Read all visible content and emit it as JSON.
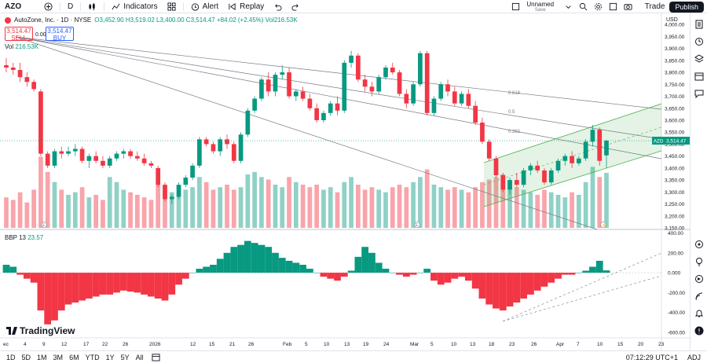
{
  "toolbar": {
    "symbol": "AZO",
    "interval": "D",
    "indicators_label": "Indicators",
    "alert_label": "Alert",
    "replay_label": "Replay",
    "layout_name": "Unnamed",
    "layout_status": "Save",
    "trade_label": "Trade",
    "publish_label": "Publish"
  },
  "legend": {
    "title": "AutoZone, Inc. · 1D · NYSE",
    "ohlc": "O3,452.90  H3,519.02  L3,400.00  C3,514.47  +84.02 (+2.45%)  Vol216.53K",
    "sell_price": "3,514.47",
    "sell_label": "SELL",
    "spread": "0.00",
    "buy_price": "3,514.47",
    "buy_label": "BUY",
    "vol_prefix": "Vol",
    "vol_value": "216.53K"
  },
  "indicator": {
    "name": "BBP 13",
    "value": "23.57"
  },
  "price_axis": {
    "currency": "USD",
    "ticks": [
      "4,000.00",
      "3,950.00",
      "3,900.00",
      "3,850.00",
      "3,800.00",
      "3,750.00",
      "3,700.00",
      "3,650.00",
      "3,600.00",
      "3,550.00",
      "3,500.00",
      "3,450.00",
      "3,400.00",
      "3,350.00",
      "3,300.00",
      "3,250.00",
      "3,200.00",
      "3,150.00"
    ],
    "current_label": "AZO",
    "current_price": "3,514.47"
  },
  "bbp_axis": {
    "ticks": [
      "400.00",
      "200.00",
      "0.000",
      "-200.00",
      "-400.00",
      "-600.00"
    ]
  },
  "fib_labels": [
    "0.618",
    "0.5",
    "0.382"
  ],
  "time_axis": [
    "ec",
    "4",
    "9",
    "12",
    "17",
    "22",
    "26",
    "2026",
    "12",
    "15",
    "21",
    "26",
    "Feb",
    "5",
    "10",
    "13",
    "19",
    "24",
    "Mar",
    "5",
    "10",
    "13",
    "18",
    "23",
    "26",
    "Apr",
    "7",
    "10",
    "15",
    "20",
    "23"
  ],
  "bottombar": {
    "ranges": [
      "1D",
      "5D",
      "1M",
      "3M",
      "6M",
      "YTD",
      "1Y",
      "5Y",
      "All"
    ],
    "clock": "07:12:29 UTC+1",
    "adj": "ADJ"
  },
  "logo_text": "TradingView",
  "colors": {
    "up": "#089981",
    "down": "#f23645",
    "channel": "#4caf50"
  },
  "chart_data": {
    "type": "candlestick",
    "title": "AutoZone, Inc. 1D NYSE",
    "ylim": [
      3150,
      4040
    ],
    "candles": [
      [
        3830,
        3860,
        3800,
        3820
      ],
      [
        3820,
        3840,
        3790,
        3810
      ],
      [
        3810,
        3840,
        3760,
        3780
      ],
      [
        3780,
        3800,
        3740,
        3760
      ],
      [
        3760,
        3770,
        3720,
        3730
      ],
      [
        3720,
        3730,
        3450,
        3460
      ],
      [
        3460,
        3470,
        3400,
        3410
      ],
      [
        3410,
        3480,
        3400,
        3470
      ],
      [
        3470,
        3490,
        3440,
        3460
      ],
      [
        3460,
        3490,
        3450,
        3470
      ],
      [
        3470,
        3500,
        3450,
        3480
      ],
      [
        3480,
        3490,
        3420,
        3430
      ],
      [
        3430,
        3460,
        3400,
        3450
      ],
      [
        3450,
        3470,
        3420,
        3430
      ],
      [
        3430,
        3450,
        3400,
        3410
      ],
      [
        3410,
        3450,
        3400,
        3440
      ],
      [
        3440,
        3470,
        3430,
        3460
      ],
      [
        3460,
        3480,
        3440,
        3470
      ],
      [
        3470,
        3480,
        3440,
        3450
      ],
      [
        3450,
        3470,
        3430,
        3440
      ],
      [
        3440,
        3460,
        3410,
        3420
      ],
      [
        3420,
        3430,
        3400,
        3410
      ],
      [
        3400,
        3410,
        3320,
        3330
      ],
      [
        3330,
        3340,
        3260,
        3270
      ],
      [
        3270,
        3290,
        3250,
        3280
      ],
      [
        3280,
        3340,
        3270,
        3330
      ],
      [
        3330,
        3370,
        3320,
        3360
      ],
      [
        3360,
        3420,
        3350,
        3410
      ],
      [
        3410,
        3530,
        3400,
        3520
      ],
      [
        3520,
        3530,
        3490,
        3500
      ],
      [
        3500,
        3510,
        3460,
        3470
      ],
      [
        3470,
        3530,
        3450,
        3520
      ],
      [
        3520,
        3540,
        3480,
        3500
      ],
      [
        3500,
        3510,
        3420,
        3430
      ],
      [
        3430,
        3550,
        3420,
        3540
      ],
      [
        3540,
        3650,
        3530,
        3640
      ],
      [
        3640,
        3700,
        3630,
        3690
      ],
      [
        3690,
        3780,
        3680,
        3770
      ],
      [
        3770,
        3800,
        3700,
        3720
      ],
      [
        3720,
        3800,
        3700,
        3790
      ],
      [
        3790,
        3830,
        3770,
        3800
      ],
      [
        3800,
        3820,
        3690,
        3700
      ],
      [
        3700,
        3730,
        3680,
        3720
      ],
      [
        3720,
        3740,
        3680,
        3690
      ],
      [
        3690,
        3710,
        3640,
        3650
      ],
      [
        3650,
        3670,
        3590,
        3600
      ],
      [
        3600,
        3640,
        3590,
        3630
      ],
      [
        3630,
        3680,
        3620,
        3670
      ],
      [
        3670,
        3700,
        3620,
        3640
      ],
      [
        3640,
        3850,
        3630,
        3840
      ],
      [
        3840,
        3890,
        3820,
        3870
      ],
      [
        3870,
        3880,
        3760,
        3770
      ],
      [
        3770,
        3790,
        3720,
        3740
      ],
      [
        3740,
        3760,
        3700,
        3720
      ],
      [
        3720,
        3790,
        3710,
        3780
      ],
      [
        3780,
        3830,
        3770,
        3820
      ],
      [
        3820,
        3840,
        3790,
        3800
      ],
      [
        3800,
        3810,
        3700,
        3710
      ],
      [
        3710,
        3730,
        3650,
        3670
      ],
      [
        3670,
        3760,
        3660,
        3750
      ],
      [
        3750,
        3890,
        3740,
        3880
      ],
      [
        3880,
        3890,
        3620,
        3630
      ],
      [
        3630,
        3700,
        3620,
        3690
      ],
      [
        3690,
        3760,
        3680,
        3750
      ],
      [
        3750,
        3770,
        3700,
        3720
      ],
      [
        3720,
        3740,
        3660,
        3670
      ],
      [
        3670,
        3720,
        3660,
        3710
      ],
      [
        3710,
        3730,
        3650,
        3660
      ],
      [
        3660,
        3680,
        3580,
        3590
      ],
      [
        3590,
        3610,
        3500,
        3510
      ],
      [
        3510,
        3520,
        3430,
        3440
      ],
      [
        3440,
        3450,
        3360,
        3370
      ],
      [
        3370,
        3380,
        3300,
        3310
      ],
      [
        3310,
        3360,
        3290,
        3350
      ],
      [
        3350,
        3380,
        3320,
        3330
      ],
      [
        3330,
        3400,
        3320,
        3390
      ],
      [
        3390,
        3420,
        3370,
        3410
      ],
      [
        3410,
        3430,
        3380,
        3390
      ],
      [
        3390,
        3400,
        3330,
        3340
      ],
      [
        3340,
        3400,
        3330,
        3390
      ],
      [
        3390,
        3440,
        3380,
        3430
      ],
      [
        3430,
        3460,
        3410,
        3450
      ],
      [
        3450,
        3470,
        3400,
        3420
      ],
      [
        3420,
        3450,
        3410,
        3440
      ],
      [
        3440,
        3520,
        3430,
        3510
      ],
      [
        3510,
        3580,
        3490,
        3560
      ],
      [
        3560,
        3570,
        3410,
        3430
      ],
      [
        3452.9,
        3519.02,
        3400,
        3514.47
      ]
    ],
    "volume_k": [
      120,
      110,
      140,
      100,
      150,
      280,
      220,
      180,
      150,
      130,
      140,
      160,
      120,
      130,
      110,
      200,
      180,
      150,
      140,
      130,
      120,
      110,
      180,
      170,
      140,
      130,
      150,
      160,
      200,
      180,
      150,
      160,
      170,
      150,
      160,
      210,
      220,
      200,
      190,
      170,
      160,
      200,
      180,
      170,
      160,
      170,
      150,
      160,
      140,
      180,
      200,
      170,
      150,
      160,
      150,
      140,
      160,
      170,
      160,
      180,
      200,
      230,
      170,
      160,
      150,
      160,
      150,
      140,
      160,
      180,
      190,
      200,
      210,
      180,
      160,
      150,
      140,
      130,
      150,
      140,
      130,
      120,
      140,
      130,
      180,
      240,
      200,
      216.53
    ],
    "bbp": [
      80,
      60,
      -20,
      -60,
      -100,
      -380,
      -520,
      -480,
      -380,
      -320,
      -300,
      -280,
      -260,
      -240,
      -220,
      -220,
      -200,
      -180,
      -190,
      -200,
      -220,
      -240,
      -260,
      -280,
      -220,
      -120,
      -60,
      0,
      40,
      60,
      80,
      140,
      200,
      260,
      280,
      320,
      300,
      280,
      260,
      200,
      150,
      120,
      100,
      80,
      40,
      0,
      -40,
      -60,
      -80,
      -40,
      20,
      160,
      260,
      200,
      100,
      40,
      0,
      -20,
      -40,
      -20,
      0,
      40,
      -80,
      -120,
      -100,
      -60,
      -40,
      -80,
      -160,
      -260,
      -320,
      -360,
      -380,
      -340,
      -300,
      -260,
      -220,
      -180,
      -140,
      -100,
      -60,
      -20,
      -20,
      0,
      20,
      60,
      120,
      23.57
    ]
  }
}
